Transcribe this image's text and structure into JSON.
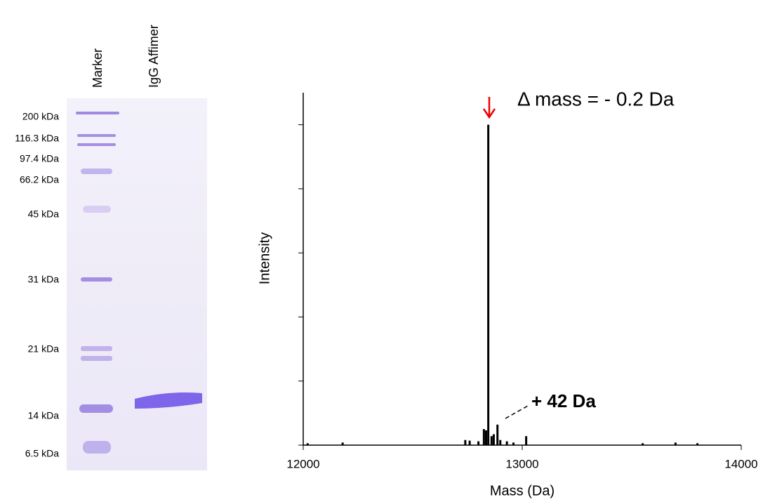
{
  "gel": {
    "lanes": [
      "Marker",
      "IgG Affimer"
    ],
    "markers": [
      "200 kDa",
      "116.3 kDa",
      "97.4 kDa",
      "66.2 kDa",
      "45 kDa",
      "31 kDa",
      "21 kDa",
      "14 kDa",
      "6.5 kDa"
    ]
  },
  "chart_data": {
    "type": "stick",
    "x_label": "Mass (Da)",
    "y_label": "Intensity",
    "annotations": [
      "Δ mass = - 0.2 Da",
      "+ 42 Da"
    ],
    "x": [
      12020,
      12180,
      12740,
      12760,
      12800,
      12825,
      12835,
      12845,
      12860,
      12870,
      12887,
      12900,
      12930,
      12960,
      13018,
      13550,
      13700,
      13800
    ],
    "values": [
      0.6,
      0.8,
      1.6,
      1.4,
      1.2,
      5,
      4.6,
      100,
      2.8,
      3.4,
      6.4,
      1.6,
      1.2,
      0.8,
      2.8,
      0.6,
      0.8,
      0.6
    ],
    "color": "#000000",
    "xlim": [
      12000,
      14000
    ],
    "xticks": [
      12000,
      13000,
      14000
    ],
    "ylim": [
      0,
      110
    ],
    "yticks": [
      0,
      20,
      40,
      60,
      80,
      100
    ]
  }
}
